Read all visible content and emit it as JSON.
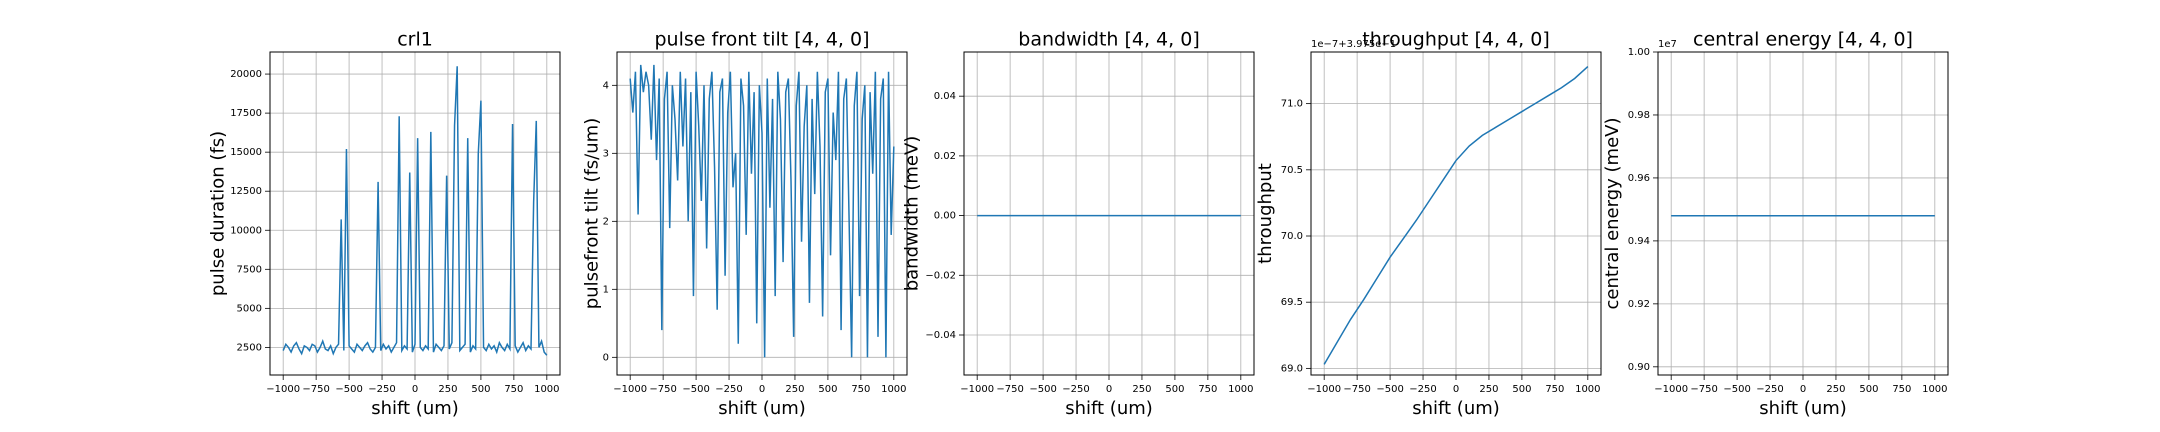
{
  "chart_data": [
    {
      "type": "line",
      "title": "crl1",
      "xlabel": "shift (um)",
      "ylabel": "pulse duration (fs)",
      "grid": true,
      "xlim": [
        -1100,
        1100
      ],
      "ylim": [
        733,
        21413
      ],
      "xticks": [
        {
          "value": -1000,
          "label": "−1000"
        },
        {
          "value": -750,
          "label": "−750"
        },
        {
          "value": -500,
          "label": "−500"
        },
        {
          "value": -250,
          "label": "−250"
        },
        0,
        250,
        500,
        750,
        1000
      ],
      "yticks": [
        2500,
        5000,
        7500,
        10000,
        12500,
        15000,
        17500,
        20000
      ],
      "x": [
        -1000,
        -980,
        -960,
        -940,
        -920,
        -900,
        -880,
        -860,
        -840,
        -820,
        -800,
        -780,
        -760,
        -740,
        -720,
        -700,
        -680,
        -660,
        -640,
        -620,
        -600,
        -580,
        -560,
        -540,
        -520,
        -500,
        -480,
        -460,
        -440,
        -420,
        -400,
        -380,
        -360,
        -340,
        -320,
        -300,
        -280,
        -260,
        -240,
        -220,
        -200,
        -180,
        -160,
        -140,
        -120,
        -100,
        -80,
        -60,
        -40,
        -20,
        0,
        20,
        40,
        60,
        80,
        100,
        120,
        140,
        160,
        180,
        200,
        220,
        240,
        260,
        280,
        300,
        320,
        340,
        360,
        380,
        400,
        420,
        440,
        460,
        480,
        500,
        520,
        540,
        560,
        580,
        600,
        620,
        640,
        660,
        680,
        700,
        720,
        740,
        760,
        780,
        800,
        820,
        840,
        860,
        880,
        900,
        920,
        940,
        960,
        980,
        1000
      ],
      "series": [
        {
          "color": "#1f77b4",
          "values": [
            2300,
            2700,
            2500,
            2200,
            2600,
            2800,
            2400,
            2100,
            2600,
            2500,
            2300,
            2700,
            2600,
            2200,
            2500,
            2900,
            2400,
            2300,
            2600,
            2100,
            2500,
            2700,
            10700,
            2300,
            15200,
            2600,
            2400,
            2200,
            2700,
            2500,
            2300,
            2600,
            2800,
            2400,
            2200,
            2500,
            13100,
            2300,
            2700,
            2400,
            2600,
            2200,
            2500,
            2800,
            17300,
            2300,
            2600,
            2400,
            13700,
            2200,
            2700,
            15900,
            2500,
            2300,
            2600,
            2400,
            16300,
            2200,
            2700,
            2500,
            2300,
            2600,
            13500,
            2400,
            2800,
            16700,
            20500,
            2300,
            2500,
            2700,
            15900,
            2200,
            2600,
            2400,
            14900,
            18300,
            2500,
            2300,
            2700,
            2400,
            2600,
            2200,
            2800,
            2500,
            2300,
            2700,
            2400,
            16800,
            2600,
            2200,
            2500,
            2800,
            2300,
            2600,
            2400,
            11800,
            17000,
            2500,
            2900,
            2200,
            2000
          ]
        }
      ]
    },
    {
      "type": "line",
      "title": "pulse front tilt [4, 4, 0]",
      "xlabel": "shift (um)",
      "ylabel": "pulsefront tilt (fs/um)",
      "grid": true,
      "xlim": [
        -1100,
        1100
      ],
      "ylim": [
        -0.26,
        4.49
      ],
      "xticks": [
        {
          "value": -1000,
          "label": "−1000"
        },
        {
          "value": -750,
          "label": "−750"
        },
        {
          "value": -500,
          "label": "−500"
        },
        {
          "value": -250,
          "label": "−250"
        },
        0,
        250,
        500,
        750,
        1000
      ],
      "yticks": [
        0,
        1,
        2,
        3,
        4
      ],
      "x": [
        -1000,
        -980,
        -960,
        -940,
        -920,
        -900,
        -880,
        -860,
        -840,
        -820,
        -800,
        -780,
        -760,
        -740,
        -720,
        -700,
        -680,
        -660,
        -640,
        -620,
        -600,
        -580,
        -560,
        -540,
        -520,
        -500,
        -480,
        -460,
        -440,
        -420,
        -400,
        -380,
        -360,
        -340,
        -320,
        -300,
        -280,
        -260,
        -240,
        -220,
        -200,
        -180,
        -160,
        -140,
        -120,
        -100,
        -80,
        -60,
        -40,
        -20,
        0,
        20,
        40,
        60,
        80,
        100,
        120,
        140,
        160,
        180,
        200,
        220,
        240,
        260,
        280,
        300,
        320,
        340,
        360,
        380,
        400,
        420,
        440,
        460,
        480,
        500,
        520,
        540,
        560,
        580,
        600,
        620,
        640,
        660,
        680,
        700,
        720,
        740,
        760,
        780,
        800,
        820,
        840,
        860,
        880,
        900,
        920,
        940,
        960,
        980,
        1000
      ],
      "series": [
        {
          "color": "#1f77b4",
          "values": [
            4.1,
            3.6,
            4.2,
            2.1,
            4.3,
            3.9,
            4.2,
            4.0,
            3.2,
            4.3,
            2.9,
            4.1,
            0.4,
            3.8,
            4.2,
            1.9,
            4.0,
            3.5,
            2.6,
            4.2,
            3.1,
            4.1,
            2.0,
            3.9,
            0.9,
            4.2,
            3.4,
            2.3,
            4.0,
            1.6,
            3.8,
            4.2,
            2.8,
            0.7,
            3.9,
            4.1,
            1.2,
            3.6,
            4.2,
            2.5,
            3.0,
            0.2,
            4.1,
            3.7,
            1.8,
            4.2,
            2.7,
            3.9,
            0.5,
            4.0,
            3.3,
            0.0,
            4.1,
            2.2,
            3.8,
            0.9,
            4.2,
            3.5,
            1.4,
            3.9,
            4.1,
            2.6,
            0.3,
            3.7,
            4.2,
            1.7,
            3.4,
            4.0,
            0.8,
            3.8,
            2.4,
            4.2,
            3.1,
            0.6,
            3.9,
            4.1,
            1.5,
            3.6,
            2.9,
            4.2,
            0.4,
            3.8,
            4.1,
            2.1,
            0.0,
            3.7,
            4.2,
            0.9,
            3.5,
            4.0,
            0.0,
            3.9,
            2.7,
            4.2,
            0.3,
            3.8,
            4.1,
            0.0,
            4.2,
            1.8,
            3.1
          ]
        }
      ]
    },
    {
      "type": "line",
      "title": "bandwidth [4, 4, 0]",
      "xlabel": "shift (um)",
      "ylabel": "bandwidth (meV)",
      "grid": true,
      "xlim": [
        -1100,
        1100
      ],
      "ylim": [
        -0.0534,
        0.0548
      ],
      "xticks": [
        {
          "value": -1000,
          "label": "−1000"
        },
        {
          "value": -750,
          "label": "−750"
        },
        {
          "value": -500,
          "label": "−500"
        },
        {
          "value": -250,
          "label": "−250"
        },
        0,
        250,
        500,
        750,
        1000
      ],
      "yticks": [
        {
          "value": -0.04,
          "label": "−0.04"
        },
        {
          "value": -0.02,
          "label": "−0.02"
        },
        {
          "value": 0,
          "label": "0.00"
        },
        0.02,
        0.04
      ],
      "x": [
        -1000,
        1000
      ],
      "series": [
        {
          "color": "#1f77b4",
          "values": [
            0,
            0
          ]
        }
      ]
    },
    {
      "type": "line",
      "title": "throughput [4, 4, 0]",
      "xlabel": "shift (um)",
      "ylabel": "throughput",
      "offset_text": "1e−7+3.975e−1",
      "grid": true,
      "xlim": [
        -1100,
        1100
      ],
      "ylim": [
        68.95,
        71.39
      ],
      "xticks": [
        {
          "value": -1000,
          "label": "−1000"
        },
        {
          "value": -750,
          "label": "−750"
        },
        {
          "value": -500,
          "label": "−500"
        },
        {
          "value": -250,
          "label": "−250"
        },
        0,
        250,
        500,
        750,
        1000
      ],
      "yticks": [
        {
          "value": 69,
          "label": "69.0"
        },
        69.5,
        {
          "value": 70,
          "label": "70.0"
        },
        70.5,
        {
          "value": 71,
          "label": "71.0"
        }
      ],
      "x": [
        -1000,
        -900,
        -800,
        -700,
        -600,
        -500,
        -400,
        -300,
        -200,
        -100,
        0,
        100,
        200,
        300,
        400,
        500,
        600,
        700,
        800,
        900,
        1000
      ],
      "series": [
        {
          "color": "#1f77b4",
          "values": [
            69.03,
            69.2,
            69.37,
            69.52,
            69.68,
            69.84,
            69.98,
            70.12,
            70.27,
            70.42,
            70.57,
            70.68,
            70.76,
            70.82,
            70.88,
            70.94,
            71.0,
            71.06,
            71.12,
            71.19,
            71.28
          ]
        }
      ]
    },
    {
      "type": "line",
      "title": "central energy [4, 4, 0]",
      "xlabel": "shift (um)",
      "ylabel": "central energy (meV)",
      "offset_text": "1e7",
      "grid": true,
      "xlim": [
        -1100,
        1100
      ],
      "ylim": [
        0.8974,
        1.0
      ],
      "xticks": [
        {
          "value": -1000,
          "label": "−1000"
        },
        {
          "value": -750,
          "label": "−750"
        },
        {
          "value": -500,
          "label": "−500"
        },
        {
          "value": -250,
          "label": "−250"
        },
        0,
        250,
        500,
        750,
        1000
      ],
      "yticks": [
        {
          "value": 0.9,
          "label": "0.90"
        },
        0.92,
        0.94,
        0.96,
        0.98,
        {
          "value": 1,
          "label": "1.00"
        }
      ],
      "x": [
        -1000,
        1000
      ],
      "series": [
        {
          "color": "#1f77b4",
          "values": [
            0.948,
            0.948
          ]
        }
      ]
    }
  ]
}
